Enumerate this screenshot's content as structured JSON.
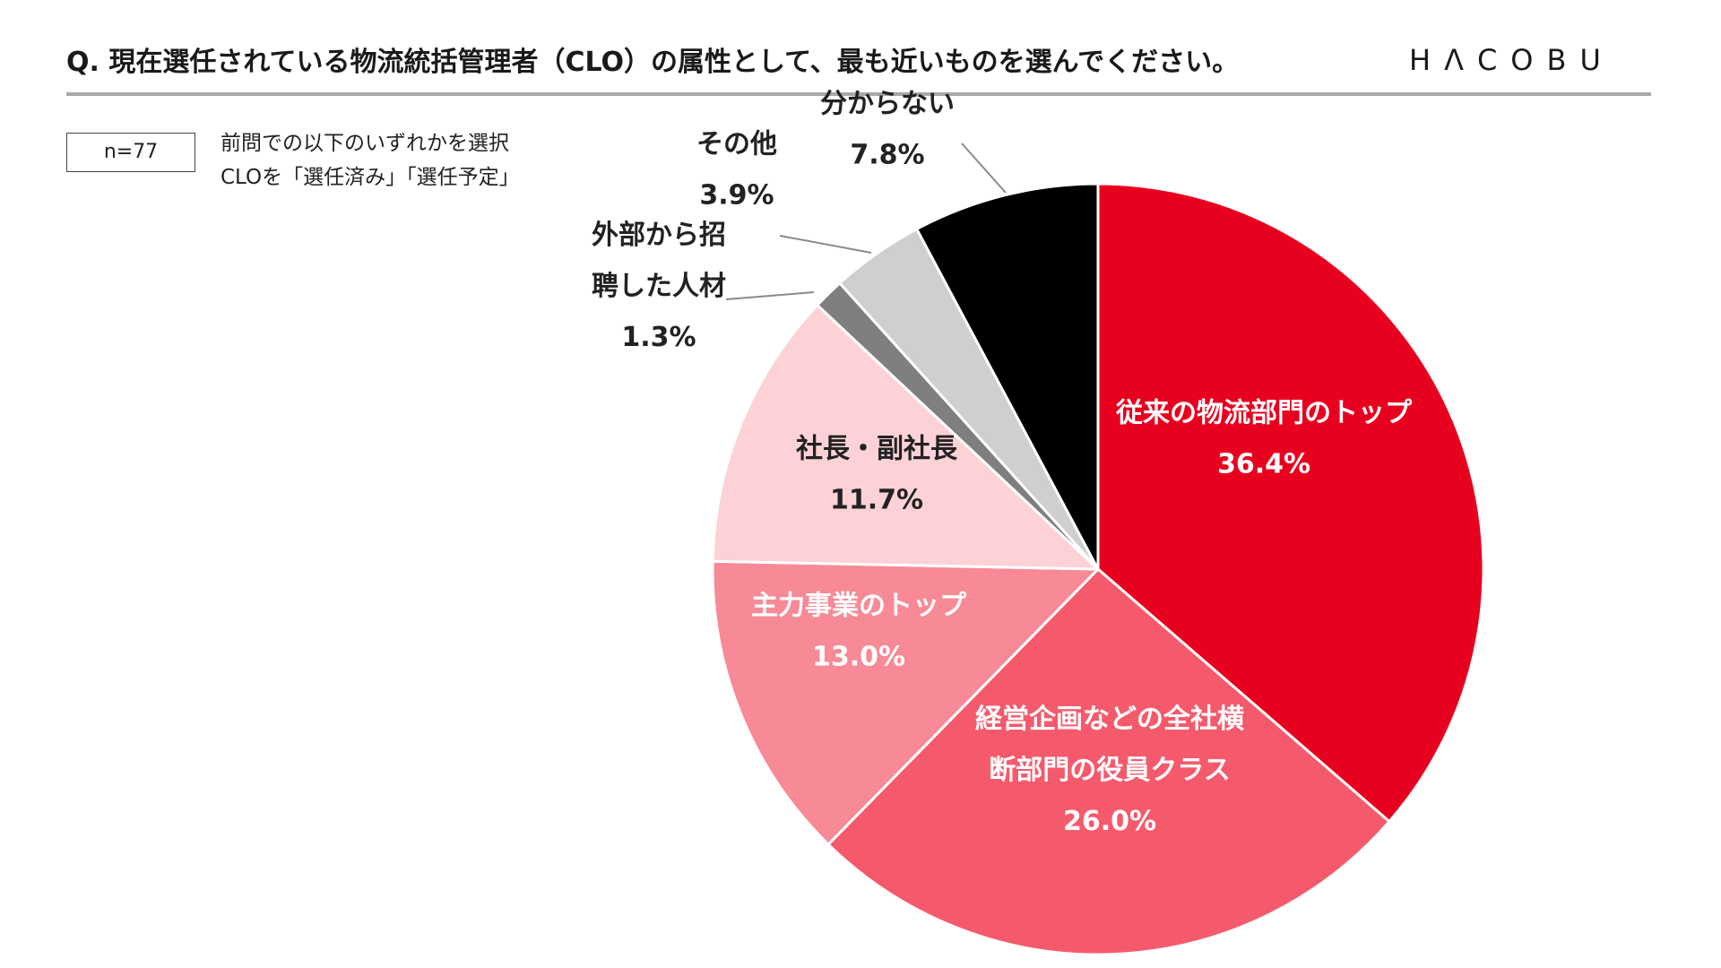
{
  "header": {
    "title": "Q.  現在選任されている物流統括管理者（CLO）の属性として、最も近いものを選んでください。",
    "logo": "HΛCOBU"
  },
  "sample": {
    "n_label": "n=77"
  },
  "note": {
    "line1": "前問での以下のいずれかを選択",
    "line2": "CLOを「選任済み」「選任予定」"
  },
  "chart_data": {
    "type": "pie",
    "title": "",
    "start_angle_deg": 0,
    "direction": "clockwise",
    "slices": [
      {
        "label_lines": [
          "従来の物流部門のトップ"
        ],
        "pct_text": "36.4%",
        "value": 36.4,
        "color": "#e8001f",
        "text_color": "#ffffff"
      },
      {
        "label_lines": [
          "経営企画などの全社横",
          "断部門の役員クラス"
        ],
        "pct_text": "26.0%",
        "value": 26.0,
        "color": "#f55a6c",
        "text_color": "#ffffff"
      },
      {
        "label_lines": [
          "主力事業のトップ"
        ],
        "pct_text": "13.0%",
        "value": 13.0,
        "color": "#f78a96",
        "text_color": "#ffffff"
      },
      {
        "label_lines": [
          "社長・副社長"
        ],
        "pct_text": "11.7%",
        "value": 11.7,
        "color": "#fdd2d7",
        "text_color": "#222222"
      },
      {
        "label_lines": [
          "外部から招",
          "聘した人材"
        ],
        "pct_text": "1.3%",
        "value": 1.3,
        "color": "#7f7f7f",
        "text_color": "#222222"
      },
      {
        "label_lines": [
          "その他"
        ],
        "pct_text": "3.9%",
        "value": 3.9,
        "color": "#cfcfcf",
        "text_color": "#222222"
      },
      {
        "label_lines": [
          "分からない"
        ],
        "pct_text": "7.8%",
        "value": 7.8,
        "color": "#000000",
        "text_color": "#222222"
      }
    ]
  }
}
